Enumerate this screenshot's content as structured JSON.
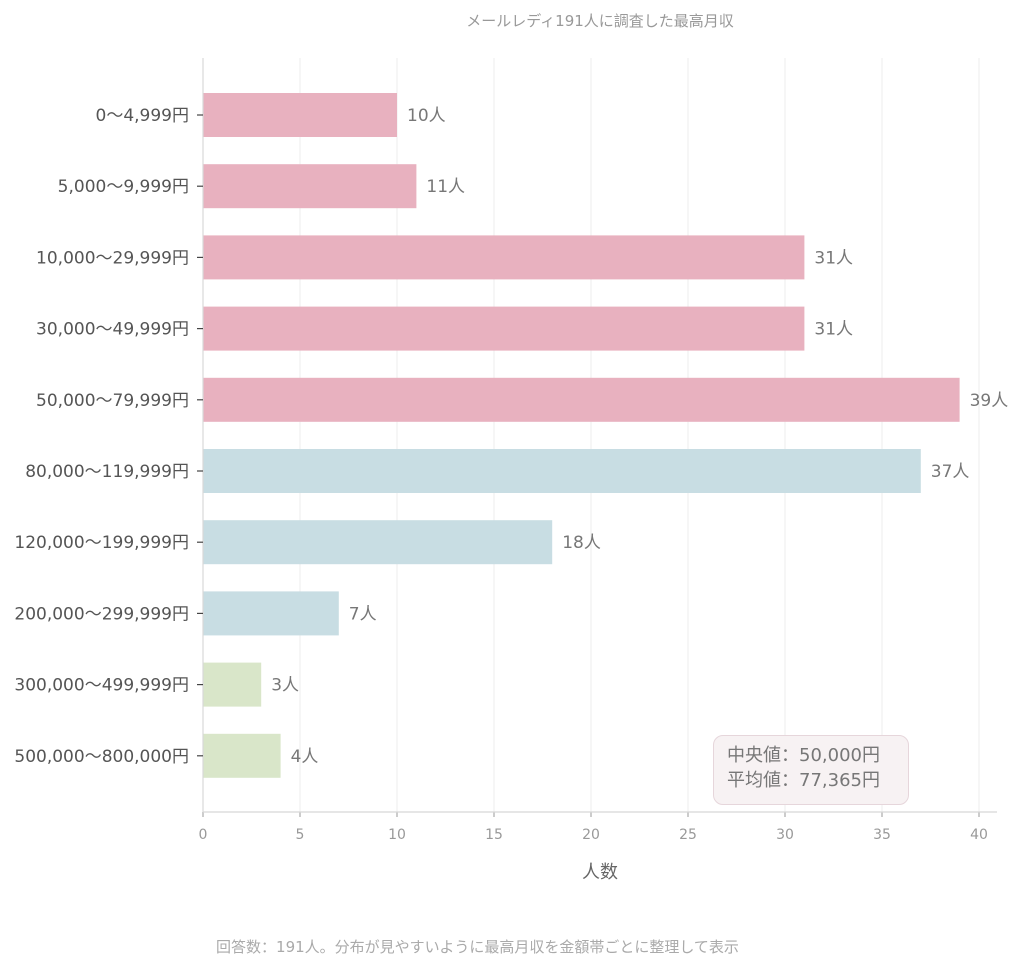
{
  "chart_data": {
    "type": "bar",
    "orientation": "horizontal",
    "title": "メールレディ191人に調査した最高月収",
    "xlabel": "人数",
    "ylabel": "",
    "xlim": [
      0,
      40
    ],
    "xticks": [
      0,
      5,
      10,
      15,
      20,
      25,
      30,
      35,
      40
    ],
    "grid": "vertical",
    "categories": [
      "0〜4,999円",
      "5,000〜9,999円",
      "10,000〜29,999円",
      "30,000〜49,999円",
      "50,000〜79,999円",
      "80,000〜119,999円",
      "120,000〜199,999円",
      "200,000〜299,999円",
      "300,000〜499,999円",
      "500,000〜800,000円"
    ],
    "values": [
      10,
      11,
      31,
      31,
      39,
      37,
      18,
      7,
      3,
      4
    ],
    "value_suffix": "人",
    "bar_colors": [
      "#e8b1bf",
      "#e8b1bf",
      "#e8b1bf",
      "#e8b1bf",
      "#e8b1bf",
      "#c8dde3",
      "#c8dde3",
      "#c8dde3",
      "#d9e6c9",
      "#d9e6c9"
    ],
    "annotation": {
      "median": "中央値：50,000円",
      "mean": "平均値：77,365円"
    }
  },
  "footer": "回答数：191人。分布が見やすいように最高月収を金額帯ごとに整理して表示"
}
